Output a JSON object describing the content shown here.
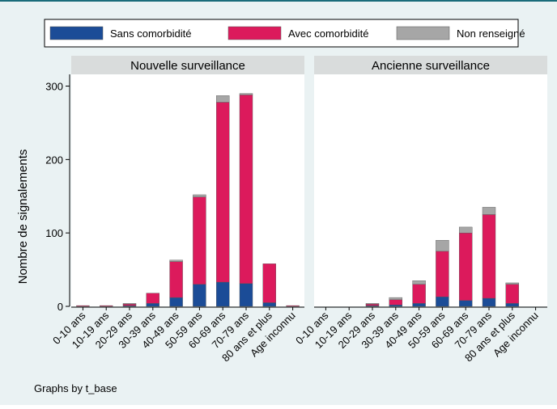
{
  "note": "Graphs by t_base",
  "chart_data": [
    {
      "type": "bar",
      "stacked": true,
      "title": "Nouvelle surveillance",
      "ylabel": "Nombre de signalements",
      "categories": [
        "0-10 ans",
        "10-19 ans",
        "20-29 ans",
        "30-39 ans",
        "40-49 ans",
        "50-59 ans",
        "60-69 ans",
        "70-79 ans",
        "80 ans et plus",
        "Age inconnu"
      ],
      "series": [
        {
          "name": "Sans comorbidité",
          "color": "#1b4c97",
          "values": [
            0,
            0,
            1,
            4,
            12,
            30,
            33,
            31,
            5,
            0
          ]
        },
        {
          "name": "Avec comorbidité",
          "color": "#dc1a5c",
          "values": [
            1,
            1,
            2,
            14,
            49,
            119,
            245,
            257,
            53,
            1
          ]
        },
        {
          "name": "Non renseigné",
          "color": "#a6a6a6",
          "values": [
            0,
            0,
            1,
            0,
            2,
            3,
            9,
            2,
            0,
            0
          ]
        }
      ],
      "ylim": [
        0,
        316
      ],
      "yticks": [
        0,
        100,
        200,
        300
      ]
    },
    {
      "type": "bar",
      "stacked": true,
      "title": "Ancienne surveillance",
      "categories": [
        "0-10 ans",
        "10-19 ans",
        "20-29 ans",
        "30-39 ans",
        "40-49 ans",
        "50-59 ans",
        "60-69 ans",
        "70-79 ans",
        "80 ans et plus",
        "Age inconnu"
      ],
      "series": [
        {
          "name": "Sans comorbidité",
          "color": "#1b4c97",
          "values": [
            0,
            0,
            1,
            2,
            4,
            13,
            8,
            11,
            4,
            0
          ]
        },
        {
          "name": "Avec comorbidité",
          "color": "#dc1a5c",
          "values": [
            0,
            0,
            2,
            7,
            26,
            62,
            92,
            114,
            26,
            0
          ]
        },
        {
          "name": "Non renseigné",
          "color": "#a6a6a6",
          "values": [
            0,
            0,
            1,
            3,
            5,
            15,
            8,
            10,
            2,
            0
          ]
        }
      ],
      "ylim": [
        0,
        316
      ]
    }
  ]
}
